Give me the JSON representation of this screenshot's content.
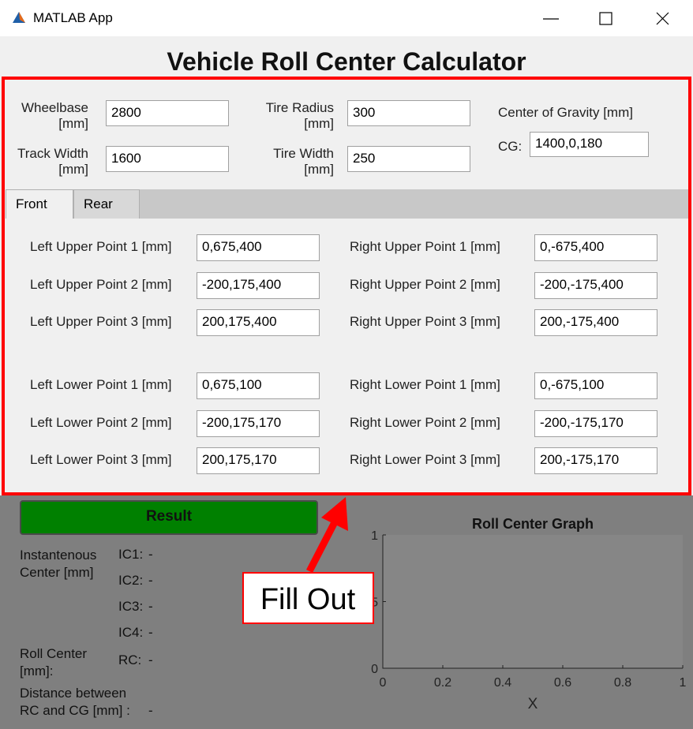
{
  "window": {
    "title": "MATLAB App"
  },
  "header": {
    "title": "Vehicle Roll Center Calculator"
  },
  "general": {
    "fields": [
      {
        "label": [
          "Wheelbase",
          "[mm]"
        ],
        "value": "2800"
      },
      {
        "label": [
          "Track Width",
          "[mm]"
        ],
        "value": "1600"
      },
      {
        "label": [
          "Tire Radius",
          "[mm]"
        ],
        "value": "300"
      },
      {
        "label": [
          "Tire Width",
          "[mm]"
        ],
        "value": "250"
      }
    ],
    "cg": {
      "heading": "Center of Gravity  [mm]",
      "label": "CG:",
      "value": "1400,0,180"
    }
  },
  "tabs": [
    "Front",
    "Rear"
  ],
  "points": {
    "left": [
      {
        "label": "Left Upper Point 1 [mm]",
        "value": "0,675,400"
      },
      {
        "label": "Left Upper Point 2 [mm]",
        "value": "-200,175,400"
      },
      {
        "label": "Left Upper Point 3 [mm]",
        "value": "200,175,400"
      },
      {
        "label": "Left Lower Point 1 [mm]",
        "value": "0,675,100"
      },
      {
        "label": "Left Lower Point 2 [mm]",
        "value": "-200,175,170"
      },
      {
        "label": "Left Lower Point 3 [mm]",
        "value": "200,175,170"
      }
    ],
    "right": [
      {
        "label": "Right Upper Point 1 [mm]",
        "value": "0,-675,400"
      },
      {
        "label": "Right Upper Point 2 [mm]",
        "value": "-200,-175,400"
      },
      {
        "label": "Right Upper Point 3 [mm]",
        "value": "200,-175,400"
      },
      {
        "label": "Right Lower Point 1 [mm]",
        "value": "0,-675,100"
      },
      {
        "label": "Right Lower Point 2 [mm]",
        "value": "-200,-175,170"
      },
      {
        "label": "Right Lower Point 3 [mm]",
        "value": "200,-175,170"
      }
    ]
  },
  "result": {
    "button": "Result",
    "ic_label": [
      "Instantenous",
      "Center [mm]"
    ],
    "ic": [
      {
        "label": "IC1:",
        "value": "-"
      },
      {
        "label": "IC2:",
        "value": "-"
      },
      {
        "label": "IC3:",
        "value": "-"
      },
      {
        "label": "IC4:",
        "value": "-"
      }
    ],
    "rc_label": [
      "Roll Center",
      "[mm]:"
    ],
    "rc": {
      "label": "RC:",
      "value": "-"
    },
    "distance_label": [
      "Distance between",
      "RC and CG [mm] :"
    ],
    "distance_value": "-"
  },
  "graph": {
    "title": "Roll Center Graph",
    "xlabel": "X",
    "xticks": [
      0,
      0.2,
      0.4,
      0.6,
      0.8,
      1
    ],
    "yticks": [
      0,
      0.5,
      1
    ]
  },
  "annotation": "Fill Out"
}
